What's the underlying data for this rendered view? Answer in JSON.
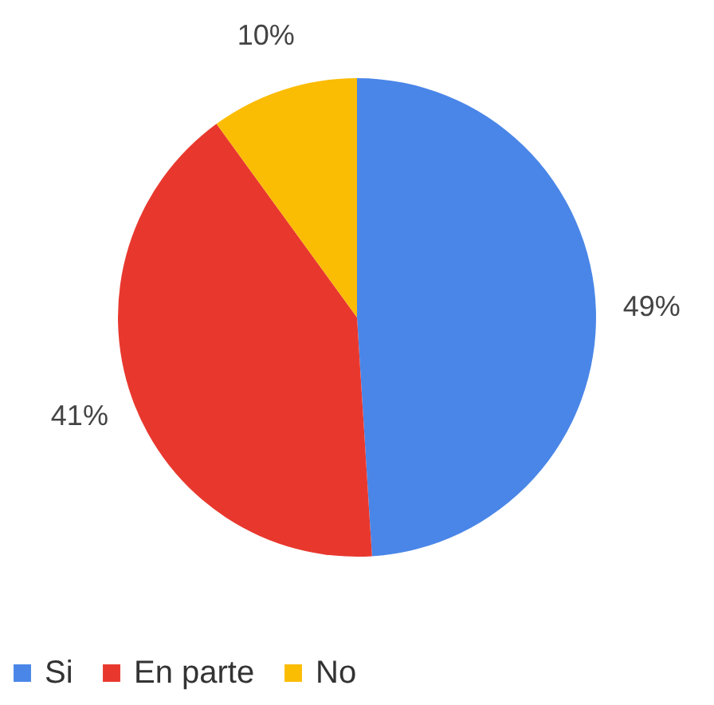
{
  "chart_data": {
    "type": "pie",
    "categories": [
      "Si",
      "En parte",
      "No"
    ],
    "values": [
      49,
      41,
      10
    ],
    "colors": [
      "#4a86e8",
      "#e8382e",
      "#fbbc04"
    ],
    "value_labels": [
      "49%",
      "41%",
      "10%"
    ],
    "legend": "bottom"
  }
}
